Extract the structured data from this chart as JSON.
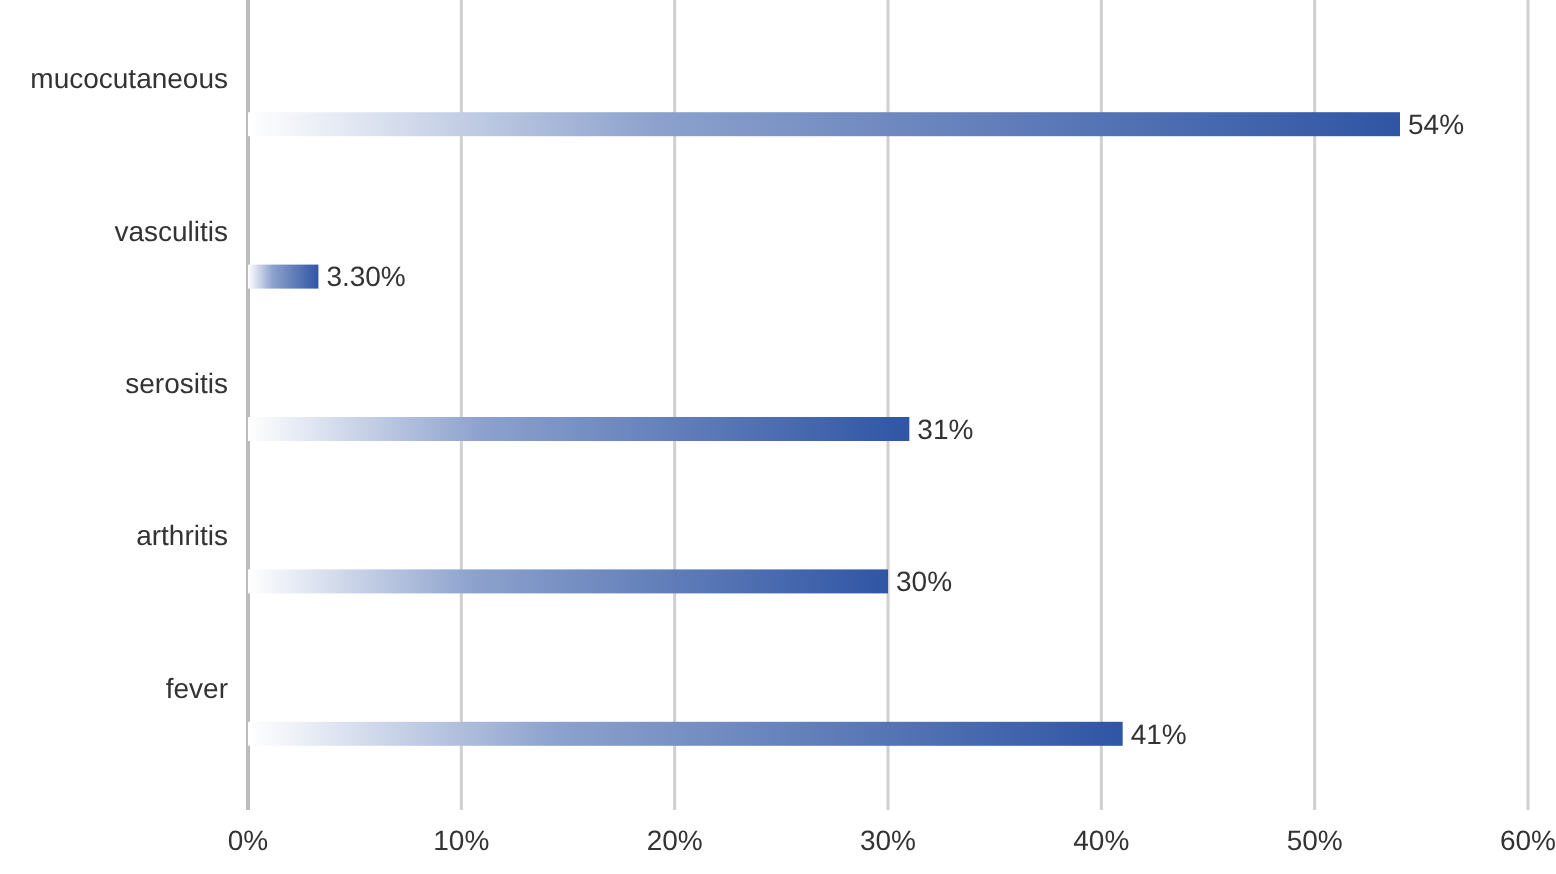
{
  "chart_data": {
    "type": "bar",
    "orientation": "horizontal",
    "categories": [
      "mucocutaneous",
      "vasculitis",
      "serositis",
      "arthritis",
      "fever"
    ],
    "values": [
      54,
      3.3,
      31,
      30,
      41
    ],
    "value_labels": [
      "54%",
      "3.30%",
      "31%",
      "30%",
      "41%"
    ],
    "color": "#2f55a4",
    "xlim": [
      0,
      60
    ],
    "xticks": [
      {
        "value": 0,
        "label": "0%"
      },
      {
        "value": 10,
        "label": "10%"
      },
      {
        "value": 20,
        "label": "20%"
      },
      {
        "value": 30,
        "label": "30%"
      },
      {
        "value": 40,
        "label": "40%"
      },
      {
        "value": 50,
        "label": "50%"
      },
      {
        "value": 60,
        "label": "60%"
      }
    ],
    "grid": "x"
  }
}
